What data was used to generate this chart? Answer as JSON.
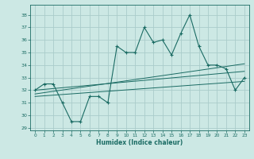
{
  "title": "",
  "xlabel": "Humidex (Indice chaleur)",
  "bg_color": "#cce8e4",
  "grid_color": "#aaccca",
  "line_color": "#1a6b63",
  "xlim": [
    -0.5,
    23.5
  ],
  "ylim": [
    28.8,
    38.8
  ],
  "yticks": [
    29,
    30,
    31,
    32,
    33,
    34,
    35,
    36,
    37,
    38
  ],
  "xticks": [
    0,
    1,
    2,
    3,
    4,
    5,
    6,
    7,
    8,
    9,
    10,
    11,
    12,
    13,
    14,
    15,
    16,
    17,
    18,
    19,
    20,
    21,
    22,
    23
  ],
  "main_data": {
    "x": [
      0,
      1,
      2,
      3,
      4,
      5,
      6,
      7,
      8,
      9,
      10,
      11,
      12,
      13,
      14,
      15,
      16,
      17,
      18,
      19,
      20,
      21,
      22,
      23
    ],
    "y": [
      32.0,
      32.5,
      32.5,
      31.0,
      29.5,
      29.5,
      31.5,
      31.5,
      31.0,
      35.5,
      35.0,
      35.0,
      37.0,
      35.8,
      36.0,
      34.8,
      36.5,
      38.0,
      35.5,
      34.0,
      34.0,
      33.7,
      32.0,
      33.0
    ]
  },
  "trend1": {
    "x": [
      0,
      23
    ],
    "y": [
      32.0,
      33.5
    ]
  },
  "trend2": {
    "x": [
      0,
      23
    ],
    "y": [
      31.7,
      34.1
    ]
  },
  "trend3": {
    "x": [
      0,
      23
    ],
    "y": [
      31.5,
      32.7
    ]
  }
}
